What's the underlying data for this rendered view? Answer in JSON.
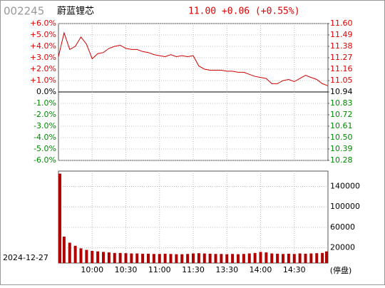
{
  "header": {
    "code": "002245",
    "name": "蔚蓝锂芯",
    "quote": "11.00 +0.06 (+0.55%)"
  },
  "chart_data": [
    {
      "type": "line",
      "x": [
        "09:30",
        "09:35",
        "09:40",
        "09:45",
        "09:50",
        "09:55",
        "10:00",
        "10:05",
        "10:10",
        "10:15",
        "10:20",
        "10:25",
        "10:30",
        "10:35",
        "10:40",
        "10:45",
        "10:50",
        "10:55",
        "11:00",
        "11:05",
        "11:10",
        "11:15",
        "11:20",
        "11:25",
        "11:30",
        "13:05",
        "13:10",
        "13:15",
        "13:20",
        "13:25",
        "13:30",
        "13:35",
        "13:40",
        "13:45",
        "13:50",
        "13:55",
        "14:00",
        "14:05",
        "14:10",
        "14:15",
        "14:20",
        "14:25",
        "14:30",
        "14:35",
        "14:40",
        "14:45",
        "14:50",
        "14:55",
        "15:00"
      ],
      "ylim": [
        -6,
        6
      ],
      "yticks": [
        {
          "value": 6,
          "label": "+6.0%"
        },
        {
          "value": 5,
          "label": "+5.0%"
        },
        {
          "value": 4,
          "label": "+4.0%"
        },
        {
          "value": 3,
          "label": "+3.0%"
        },
        {
          "value": 2,
          "label": "+2.0%"
        },
        {
          "value": 1,
          "label": "+1.0%"
        },
        {
          "value": 0,
          "label": "0.0%"
        },
        {
          "value": -1,
          "label": "-1.0%"
        },
        {
          "value": -2,
          "label": "-2.0%"
        },
        {
          "value": -3,
          "label": "-3.0%"
        },
        {
          "value": -4,
          "label": "-4.0%"
        },
        {
          "value": -5,
          "label": "-5.0%"
        },
        {
          "value": -6,
          "label": "-6.0%"
        }
      ],
      "y2lim": [
        10.28,
        11.6
      ],
      "y2ticks": [
        {
          "value": 11.6,
          "label": "11.60"
        },
        11.49,
        11.38,
        11.27,
        11.16,
        11.05,
        10.94,
        10.83,
        10.72,
        10.61,
        {
          "value": 10.5,
          "label": "10.50"
        },
        10.39,
        10.28
      ],
      "grid": true,
      "series": [
        {
          "color": "#cc0000",
          "axis": "y2",
          "values": [
            11.28,
            11.51,
            11.35,
            11.38,
            11.47,
            11.4,
            11.26,
            11.31,
            11.32,
            11.36,
            11.38,
            11.39,
            11.36,
            11.35,
            11.35,
            11.33,
            11.32,
            11.3,
            11.29,
            11.28,
            11.3,
            11.28,
            11.29,
            11.28,
            11.29,
            11.19,
            11.16,
            11.15,
            11.15,
            11.15,
            11.14,
            11.14,
            11.13,
            11.13,
            11.11,
            11.09,
            11.08,
            11.07,
            11.02,
            11.02,
            11.05,
            11.06,
            11.04,
            11.07,
            11.1,
            11.08,
            11.06,
            11.02,
            11.0
          ]
        }
      ]
    },
    {
      "type": "bar",
      "x": [
        "09:30",
        "09:35",
        "09:40",
        "09:45",
        "09:50",
        "09:55",
        "10:00",
        "10:05",
        "10:10",
        "10:15",
        "10:20",
        "10:25",
        "10:30",
        "10:35",
        "10:40",
        "10:45",
        "10:50",
        "10:55",
        "11:00",
        "11:05",
        "11:10",
        "11:15",
        "11:20",
        "11:25",
        "11:30",
        "13:05",
        "13:10",
        "13:15",
        "13:20",
        "13:25",
        "13:30",
        "13:35",
        "13:40",
        "13:45",
        "13:50",
        "13:55",
        "14:00",
        "14:05",
        "14:10",
        "14:15",
        "14:20",
        "14:25",
        "14:30",
        "14:35",
        "14:40",
        "14:45",
        "14:50",
        "14:55",
        "15:00"
      ],
      "values": [
        165000,
        42000,
        30000,
        24000,
        19000,
        16000,
        14000,
        13000,
        12000,
        11000,
        10000,
        10000,
        9500,
        9000,
        9000,
        8500,
        8500,
        8000,
        8000,
        8500,
        8000,
        7500,
        7500,
        8000,
        9000,
        9500,
        9000,
        8500,
        8000,
        8000,
        7500,
        8000,
        7500,
        8000,
        9000,
        10000,
        12000,
        11000,
        9000,
        8500,
        8000,
        8500,
        8000,
        9000,
        8500,
        9000,
        9500,
        10000,
        13000
      ],
      "color": "#b00000",
      "ylim": [
        0,
        170000
      ],
      "yticks": [
        20000,
        60000,
        100000,
        140000
      ],
      "xticks": [
        "10:00",
        "10:30",
        "11:00",
        "11:30",
        "13:30",
        "14:00",
        "14:30"
      ],
      "grid": true,
      "date": "2024-12-27",
      "note": "(停盘)"
    }
  ]
}
